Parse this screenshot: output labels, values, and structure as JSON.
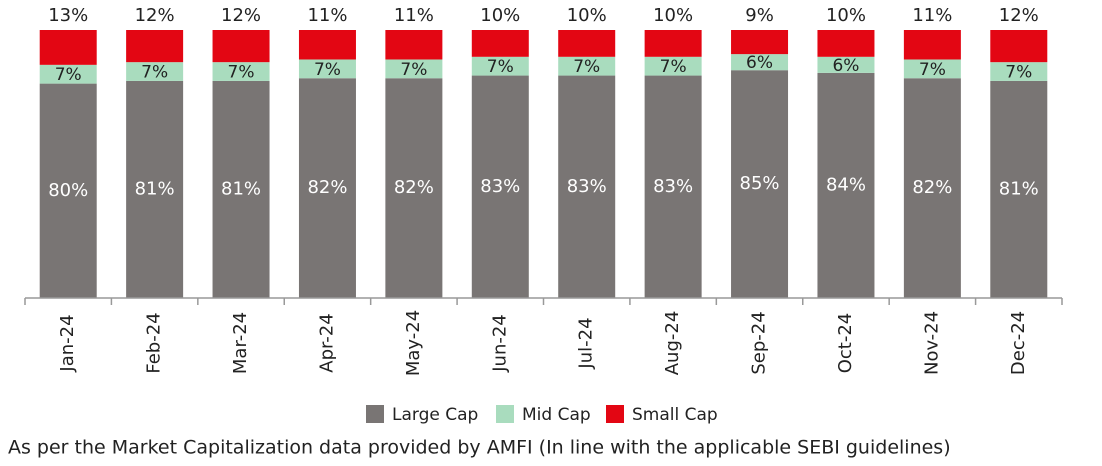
{
  "chart_data": {
    "type": "stacked_bar",
    "categories": [
      "Jan-24",
      "Feb-24",
      "Mar-24",
      "Apr-24",
      "May-24",
      "Jun-24",
      "Jul-24",
      "Aug-24",
      "Sep-24",
      "Oct-24",
      "Nov-24",
      "Dec-24"
    ],
    "series": [
      {
        "name": "Large Cap",
        "color": "#797574",
        "values": [
          80,
          81,
          81,
          82,
          82,
          83,
          83,
          83,
          85,
          84,
          82,
          81
        ],
        "value_labels": [
          "80%",
          "81%",
          "81%",
          "82%",
          "82%",
          "83%",
          "83%",
          "83%",
          "85%",
          "84%",
          "82%",
          "81%"
        ]
      },
      {
        "name": "Mid Cap",
        "color": "#a9dcbe",
        "values": [
          7,
          7,
          7,
          7,
          7,
          7,
          7,
          7,
          6,
          6,
          7,
          7
        ],
        "value_labels": [
          "7%",
          "7%",
          "7%",
          "7%",
          "7%",
          "7%",
          "7%",
          "7%",
          "6%",
          "6%",
          "7%",
          "7%"
        ]
      },
      {
        "name": "Small Cap",
        "color": "#e30613",
        "values": [
          13,
          12,
          12,
          11,
          11,
          10,
          10,
          10,
          9,
          10,
          11,
          12
        ],
        "value_labels": [
          "13%",
          "12%",
          "12%",
          "11%",
          "11%",
          "10%",
          "10%",
          "10%",
          "9%",
          "10%",
          "11%",
          "12%"
        ]
      }
    ],
    "ylim": [
      0,
      100
    ],
    "legend": "bottom",
    "footnote": "As per the Market Capitalization data provided by AMFI (In line with the applicable SEBI guidelines)"
  }
}
